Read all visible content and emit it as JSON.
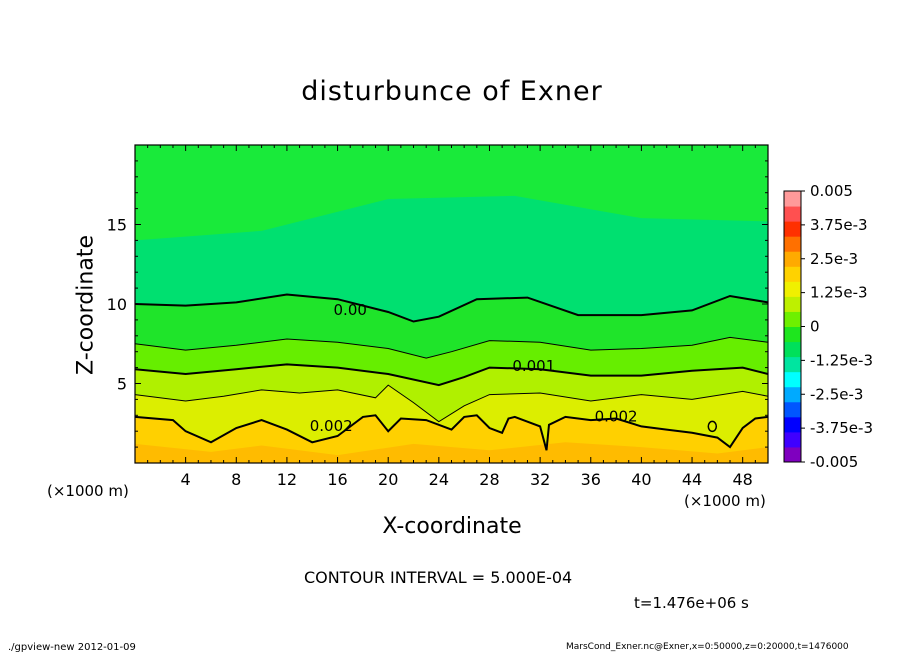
{
  "chart_data": {
    "type": "heatmap",
    "title": "disturbunce of Exner",
    "xlabel": "X-coordinate",
    "ylabel": "Z-coordinate",
    "x_unit": "(×1000 m)",
    "x_unit_bottom_right": "(×1000 m)",
    "xlim": [
      0,
      50
    ],
    "ylim": [
      0,
      20
    ],
    "x_ticks": [
      4,
      8,
      12,
      16,
      20,
      24,
      28,
      32,
      36,
      40,
      44,
      48
    ],
    "y_ticks": [
      5,
      10,
      15
    ],
    "colorbar": {
      "min": -0.005,
      "max": 0.005,
      "tick_labels": [
        "0.005",
        "3.75e-3",
        "2.5e-3",
        "1.25e-3",
        "0",
        "-1.25e-3",
        "-2.5e-3",
        "-3.75e-3",
        "-0.005"
      ],
      "tick_values": [
        0.005,
        0.00375,
        0.0025,
        0.00125,
        0,
        -0.00125,
        -0.0025,
        -0.00375,
        -0.005
      ]
    },
    "contour_labels": [
      {
        "text": "0.00",
        "x": 17,
        "z": 9.3
      },
      {
        "text": "0.001",
        "x": 31.5,
        "z": 5.8
      },
      {
        "text": "0.002",
        "x": 15.5,
        "z": 2.0
      },
      {
        "text": "0.002",
        "x": 38,
        "z": 2.6
      }
    ],
    "contours": [
      {
        "level": 0,
        "heavy": true,
        "points": [
          [
            0,
            10
          ],
          [
            4,
            9.9
          ],
          [
            8,
            10.1
          ],
          [
            12,
            10.6
          ],
          [
            16,
            10.3
          ],
          [
            20,
            9.5
          ],
          [
            22,
            8.9
          ],
          [
            24,
            9.2
          ],
          [
            27,
            10.3
          ],
          [
            31,
            10.4
          ],
          [
            35,
            9.3
          ],
          [
            40,
            9.3
          ],
          [
            44,
            9.6
          ],
          [
            47,
            10.5
          ],
          [
            50,
            10.1
          ]
        ]
      },
      {
        "level": 0.0005,
        "heavy": false,
        "points": [
          [
            0,
            7.5
          ],
          [
            4,
            7.1
          ],
          [
            8,
            7.4
          ],
          [
            12,
            7.8
          ],
          [
            16,
            7.6
          ],
          [
            20,
            7.2
          ],
          [
            23,
            6.6
          ],
          [
            25,
            7.0
          ],
          [
            28,
            7.7
          ],
          [
            32,
            7.6
          ],
          [
            36,
            7.1
          ],
          [
            40,
            7.2
          ],
          [
            44,
            7.4
          ],
          [
            47,
            7.9
          ],
          [
            50,
            7.6
          ]
        ]
      },
      {
        "level": 0.001,
        "heavy": true,
        "points": [
          [
            0,
            5.9
          ],
          [
            4,
            5.6
          ],
          [
            8,
            5.9
          ],
          [
            12,
            6.2
          ],
          [
            16,
            6.0
          ],
          [
            20,
            5.6
          ],
          [
            24,
            4.9
          ],
          [
            26,
            5.4
          ],
          [
            28,
            6.0
          ],
          [
            32,
            5.9
          ],
          [
            36,
            5.5
          ],
          [
            40,
            5.5
          ],
          [
            44,
            5.8
          ],
          [
            48,
            6.0
          ],
          [
            50,
            5.6
          ]
        ]
      },
      {
        "level": 0.0015,
        "heavy": false,
        "points": [
          [
            0,
            4.3
          ],
          [
            4,
            3.9
          ],
          [
            7,
            4.2
          ],
          [
            10,
            4.6
          ],
          [
            13,
            4.4
          ],
          [
            16,
            4.6
          ],
          [
            19,
            4.1
          ],
          [
            20,
            4.9
          ],
          [
            22,
            3.8
          ],
          [
            24,
            2.6
          ],
          [
            26,
            3.6
          ],
          [
            28,
            4.3
          ],
          [
            32,
            4.4
          ],
          [
            36,
            3.9
          ],
          [
            40,
            4.3
          ],
          [
            44,
            4.0
          ],
          [
            48,
            4.5
          ],
          [
            50,
            4.2
          ]
        ]
      },
      {
        "level": 0.002,
        "heavy": true,
        "points": [
          [
            0,
            2.9
          ],
          [
            3,
            2.7
          ],
          [
            4,
            2.0
          ],
          [
            6,
            1.3
          ],
          [
            8,
            2.2
          ],
          [
            10,
            2.7
          ],
          [
            12,
            2.1
          ],
          [
            14,
            1.3
          ],
          [
            16,
            1.7
          ],
          [
            18,
            2.9
          ],
          [
            19,
            3.0
          ],
          [
            20,
            2.0
          ],
          [
            21,
            2.8
          ],
          [
            23,
            2.7
          ],
          [
            25,
            2.1
          ],
          [
            26,
            2.9
          ],
          [
            27,
            3.0
          ],
          [
            28,
            2.2
          ],
          [
            29,
            1.9
          ],
          [
            29.5,
            2.8
          ],
          [
            30,
            2.9
          ],
          [
            31,
            2.6
          ],
          [
            32,
            2.3
          ],
          [
            32.5,
            0.8
          ],
          [
            32.7,
            2.4
          ],
          [
            34,
            2.9
          ],
          [
            36,
            2.7
          ],
          [
            38,
            2.8
          ],
          [
            40,
            2.3
          ],
          [
            42,
            2.1
          ],
          [
            44,
            1.9
          ],
          [
            46,
            1.6
          ],
          [
            47,
            1.0
          ],
          [
            48,
            2.2
          ],
          [
            49,
            2.8
          ],
          [
            50,
            2.9
          ]
        ]
      }
    ]
  },
  "annotations": {
    "contour_interval": "CONTOUR INTERVAL = 5.000E-04",
    "time": "t=1.476e+06 s",
    "footer_left": "./gpview-new   2012-01-09",
    "footer_right": "MarsCond_Exner.nc@Exner,x=0:50000,z=0:20000,t=1476000"
  },
  "colors": {
    "fill_scale": [
      "#7f00bf",
      "#3f00ff",
      "#0000ff",
      "#0055ff",
      "#00aaff",
      "#00ffff",
      "#00e5a0",
      "#00e05a",
      "#1ee61e",
      "#6ef000",
      "#bef000",
      "#f0f000",
      "#ffd200",
      "#ffaa00",
      "#ff7000",
      "#ff3000",
      "#ff5050",
      "#ff9a9a"
    ]
  }
}
